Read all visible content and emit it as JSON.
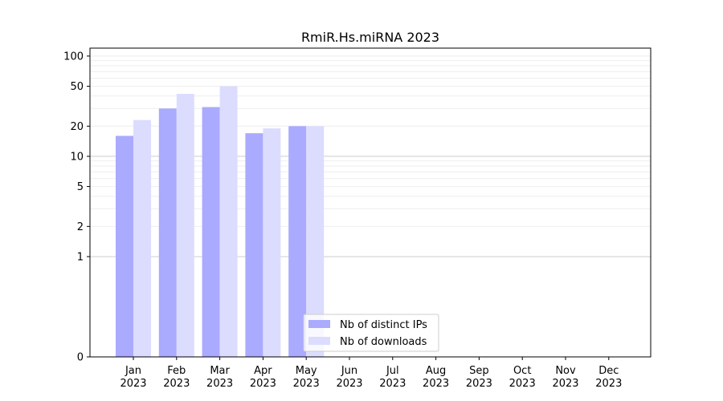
{
  "chart_data": {
    "type": "bar",
    "title": "RmiR.Hs.miRNA 2023",
    "xlabel": "",
    "ylabel": "",
    "y_scale": "symlog",
    "ylim": [
      0,
      120
    ],
    "y_ticks": [
      0,
      1,
      2,
      5,
      10,
      20,
      50,
      100
    ],
    "categories": [
      "Jan\n2023",
      "Feb\n2023",
      "Mar\n2023",
      "Apr\n2023",
      "May\n2023",
      "Jun\n2023",
      "Jul\n2023",
      "Aug\n2023",
      "Sep\n2023",
      "Oct\n2023",
      "Nov\n2023",
      "Dec\n2023"
    ],
    "series": [
      {
        "name": "Nb of distinct IPs",
        "color": "#aaaaff",
        "values": [
          16,
          30,
          31,
          17,
          20,
          null,
          null,
          null,
          null,
          null,
          null,
          null
        ]
      },
      {
        "name": "Nb of downloads",
        "color": "#dcdcff",
        "values": [
          23,
          42,
          50,
          19,
          20,
          null,
          null,
          null,
          null,
          null,
          null,
          null
        ]
      }
    ],
    "grid": true,
    "legend_position": "lower-center"
  }
}
